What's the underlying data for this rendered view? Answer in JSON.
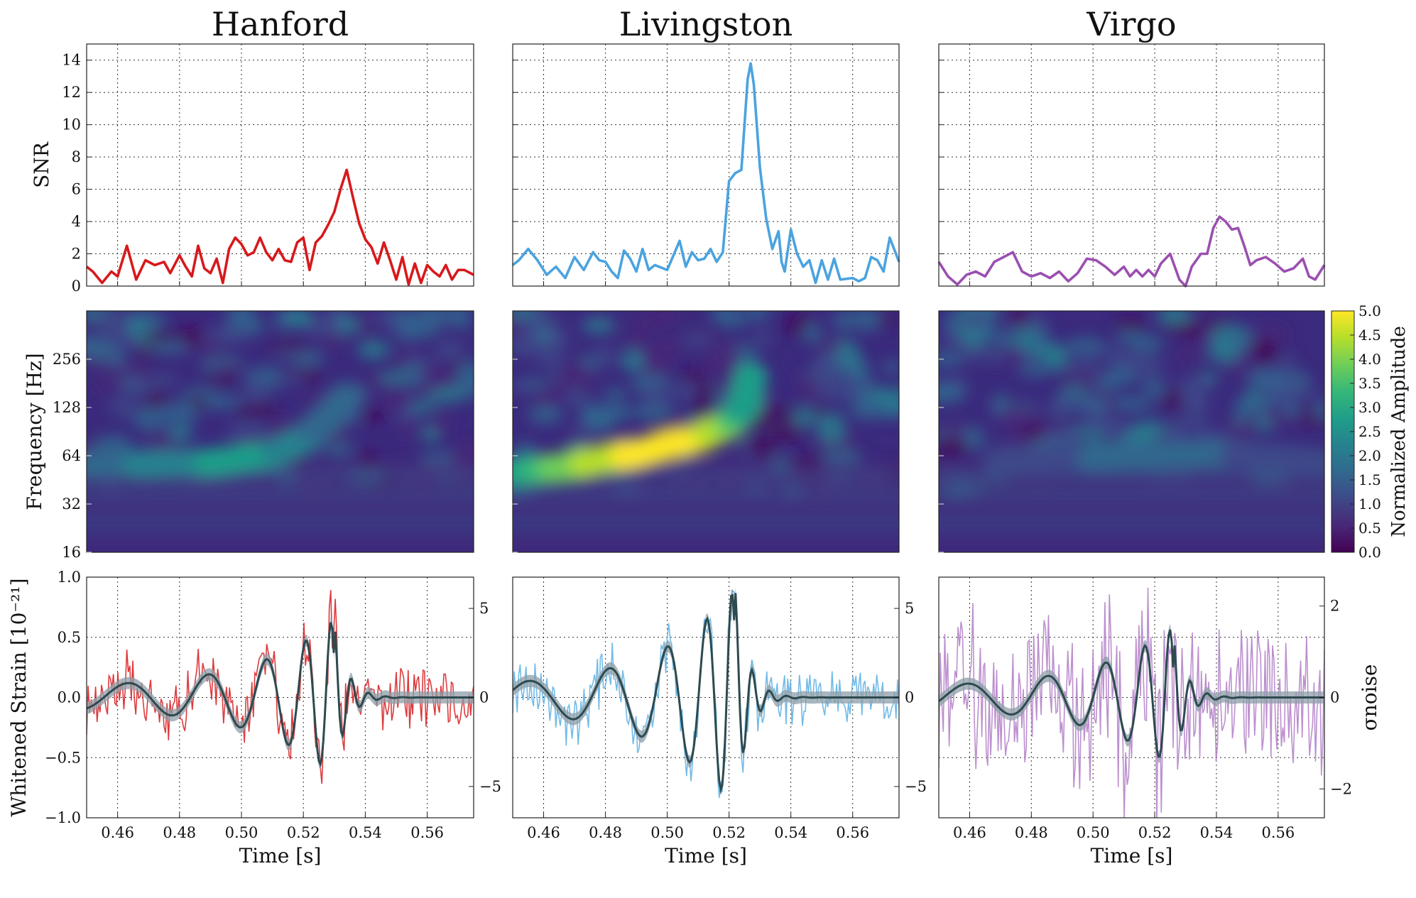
{
  "chart_data": {
    "type": "line",
    "layout": "3x3-grid",
    "columns": [
      "Hanford",
      "Livingston",
      "Virgo"
    ],
    "x_axis": {
      "label": "Time [s]",
      "range": [
        0.45,
        0.575
      ],
      "ticks": [
        0.46,
        0.48,
        0.5,
        0.52,
        0.54,
        0.56
      ],
      "tick_labels": [
        "0.46",
        "0.48",
        "0.50",
        "0.52",
        "0.54",
        "0.56"
      ]
    },
    "snr": {
      "ylabel": "SNR",
      "ylim": [
        0,
        15
      ],
      "ticks": [
        0,
        2,
        4,
        6,
        8,
        10,
        12,
        14
      ],
      "grid": true,
      "series": [
        {
          "name": "Hanford",
          "color": "#d7191c",
          "peak_time": 0.534,
          "peak_value": 7.2,
          "points": [
            [
              0.45,
              1.2
            ],
            [
              0.452,
              0.9
            ],
            [
              0.455,
              0.2
            ],
            [
              0.458,
              0.9
            ],
            [
              0.46,
              0.6
            ],
            [
              0.463,
              2.5
            ],
            [
              0.466,
              0.4
            ],
            [
              0.469,
              1.6
            ],
            [
              0.472,
              1.3
            ],
            [
              0.475,
              1.5
            ],
            [
              0.477,
              0.8
            ],
            [
              0.48,
              1.9
            ],
            [
              0.482,
              1.2
            ],
            [
              0.484,
              0.6
            ],
            [
              0.486,
              2.5
            ],
            [
              0.488,
              1.1
            ],
            [
              0.49,
              0.8
            ],
            [
              0.492,
              1.7
            ],
            [
              0.494,
              0.2
            ],
            [
              0.496,
              2.3
            ],
            [
              0.498,
              3.0
            ],
            [
              0.5,
              2.6
            ],
            [
              0.502,
              1.9
            ],
            [
              0.504,
              2.1
            ],
            [
              0.506,
              3.0
            ],
            [
              0.508,
              2.1
            ],
            [
              0.51,
              1.6
            ],
            [
              0.512,
              2.3
            ],
            [
              0.514,
              1.6
            ],
            [
              0.516,
              1.5
            ],
            [
              0.518,
              2.7
            ],
            [
              0.52,
              3.0
            ],
            [
              0.522,
              1.0
            ],
            [
              0.524,
              2.7
            ],
            [
              0.526,
              3.1
            ],
            [
              0.528,
              3.8
            ],
            [
              0.53,
              4.6
            ],
            [
              0.532,
              6.0
            ],
            [
              0.534,
              7.2
            ],
            [
              0.536,
              5.5
            ],
            [
              0.538,
              3.9
            ],
            [
              0.54,
              2.9
            ],
            [
              0.542,
              2.4
            ],
            [
              0.544,
              1.4
            ],
            [
              0.546,
              2.7
            ],
            [
              0.548,
              1.6
            ],
            [
              0.55,
              0.4
            ],
            [
              0.552,
              1.8
            ],
            [
              0.554,
              0.1
            ],
            [
              0.556,
              1.4
            ],
            [
              0.558,
              0.2
            ],
            [
              0.56,
              1.3
            ],
            [
              0.562,
              0.9
            ],
            [
              0.564,
              0.6
            ],
            [
              0.566,
              1.3
            ],
            [
              0.568,
              0.4
            ],
            [
              0.57,
              1.0
            ],
            [
              0.572,
              1.0
            ],
            [
              0.575,
              0.7
            ]
          ]
        },
        {
          "name": "Livingston",
          "color": "#4aa3df",
          "peak_time": 0.527,
          "peak_value": 13.8,
          "points": [
            [
              0.45,
              1.3
            ],
            [
              0.452,
              1.6
            ],
            [
              0.455,
              2.3
            ],
            [
              0.458,
              1.6
            ],
            [
              0.461,
              0.7
            ],
            [
              0.464,
              1.2
            ],
            [
              0.467,
              0.5
            ],
            [
              0.47,
              1.8
            ],
            [
              0.473,
              1.0
            ],
            [
              0.476,
              2.1
            ],
            [
              0.478,
              1.6
            ],
            [
              0.48,
              1.5
            ],
            [
              0.482,
              0.9
            ],
            [
              0.484,
              0.5
            ],
            [
              0.486,
              2.2
            ],
            [
              0.488,
              1.7
            ],
            [
              0.49,
              0.9
            ],
            [
              0.492,
              2.3
            ],
            [
              0.494,
              1.0
            ],
            [
              0.496,
              1.3
            ],
            [
              0.5,
              1.0
            ],
            [
              0.504,
              2.8
            ],
            [
              0.506,
              1.2
            ],
            [
              0.508,
              2.1
            ],
            [
              0.51,
              1.6
            ],
            [
              0.512,
              1.7
            ],
            [
              0.514,
              2.3
            ],
            [
              0.516,
              1.5
            ],
            [
              0.518,
              2.1
            ],
            [
              0.52,
              6.5
            ],
            [
              0.522,
              7.0
            ],
            [
              0.524,
              7.2
            ],
            [
              0.526,
              12.8
            ],
            [
              0.527,
              13.8
            ],
            [
              0.528,
              12.5
            ],
            [
              0.53,
              7.3
            ],
            [
              0.532,
              4.2
            ],
            [
              0.534,
              2.3
            ],
            [
              0.536,
              3.4
            ],
            [
              0.537,
              1.5
            ],
            [
              0.538,
              0.9
            ],
            [
              0.54,
              3.5
            ],
            [
              0.542,
              2.0
            ],
            [
              0.544,
              1.2
            ],
            [
              0.546,
              1.6
            ],
            [
              0.548,
              0.2
            ],
            [
              0.55,
              1.6
            ],
            [
              0.552,
              0.4
            ],
            [
              0.554,
              1.7
            ],
            [
              0.556,
              0.4
            ],
            [
              0.56,
              0.5
            ],
            [
              0.562,
              0.3
            ],
            [
              0.564,
              0.5
            ],
            [
              0.566,
              1.8
            ],
            [
              0.568,
              1.6
            ],
            [
              0.57,
              0.9
            ],
            [
              0.572,
              3.0
            ],
            [
              0.575,
              1.5
            ]
          ]
        },
        {
          "name": "Virgo",
          "color": "#9b4fb0",
          "peak_time": 0.541,
          "peak_value": 4.3,
          "points": [
            [
              0.45,
              1.5
            ],
            [
              0.453,
              0.6
            ],
            [
              0.456,
              0.1
            ],
            [
              0.459,
              0.7
            ],
            [
              0.462,
              0.9
            ],
            [
              0.465,
              0.6
            ],
            [
              0.468,
              1.5
            ],
            [
              0.471,
              1.8
            ],
            [
              0.474,
              2.1
            ],
            [
              0.477,
              0.9
            ],
            [
              0.48,
              0.6
            ],
            [
              0.483,
              0.8
            ],
            [
              0.486,
              0.5
            ],
            [
              0.489,
              0.9
            ],
            [
              0.492,
              0.3
            ],
            [
              0.495,
              0.8
            ],
            [
              0.498,
              1.7
            ],
            [
              0.501,
              1.6
            ],
            [
              0.504,
              1.2
            ],
            [
              0.507,
              0.7
            ],
            [
              0.51,
              1.2
            ],
            [
              0.512,
              0.6
            ],
            [
              0.514,
              1.0
            ],
            [
              0.516,
              0.6
            ],
            [
              0.518,
              1.0
            ],
            [
              0.52,
              0.6
            ],
            [
              0.522,
              1.4
            ],
            [
              0.525,
              2.0
            ],
            [
              0.528,
              0.4
            ],
            [
              0.53,
              0.0
            ],
            [
              0.532,
              1.2
            ],
            [
              0.535,
              2.0
            ],
            [
              0.537,
              2.0
            ],
            [
              0.539,
              3.6
            ],
            [
              0.541,
              4.3
            ],
            [
              0.543,
              4.0
            ],
            [
              0.545,
              3.5
            ],
            [
              0.547,
              3.6
            ],
            [
              0.549,
              2.5
            ],
            [
              0.551,
              1.3
            ],
            [
              0.553,
              1.6
            ],
            [
              0.556,
              1.8
            ],
            [
              0.559,
              1.4
            ],
            [
              0.562,
              0.9
            ],
            [
              0.565,
              1.1
            ],
            [
              0.568,
              1.7
            ],
            [
              0.57,
              0.6
            ],
            [
              0.572,
              0.4
            ],
            [
              0.575,
              1.3
            ]
          ]
        }
      ]
    },
    "spectrogram": {
      "type": "heatmap",
      "ylabel": "Frequency [Hz]",
      "yscale": "log2",
      "ylim": [
        16,
        512
      ],
      "yticks": [
        16,
        32,
        64,
        128,
        256
      ],
      "colorbar": {
        "label": "Normalized Amplitude",
        "range": [
          0,
          5
        ],
        "ticks": [
          "0.0",
          "0.5",
          "1.0",
          "1.5",
          "2.0",
          "2.5",
          "3.0",
          "3.5",
          "4.0",
          "4.5",
          "5.0"
        ],
        "colormap": "viridis"
      },
      "tracks": [
        {
          "name": "Hanford",
          "amplitude": 2.6,
          "chirp": [
            [
              0.45,
              56
            ],
            [
              0.47,
              57
            ],
            [
              0.49,
              58
            ],
            [
              0.51,
              65
            ],
            [
              0.52,
              80
            ],
            [
              0.53,
              120
            ],
            [
              0.534,
              150
            ]
          ],
          "width": 0.26
        },
        {
          "name": "Livingston",
          "amplitude": 5.0,
          "chirp": [
            [
              0.45,
              50
            ],
            [
              0.47,
              56
            ],
            [
              0.49,
              66
            ],
            [
              0.51,
              82
            ],
            [
              0.52,
              100
            ],
            [
              0.525,
              130
            ],
            [
              0.527,
              200
            ]
          ],
          "width": 0.28
        },
        {
          "name": "Virgo",
          "amplitude": 1.7,
          "chirp": [
            [
              0.47,
              60
            ],
            [
              0.5,
              62
            ],
            [
              0.52,
              64
            ],
            [
              0.54,
              66
            ],
            [
              0.56,
              62
            ],
            [
              0.575,
              58
            ]
          ],
          "width": 0.3
        }
      ]
    },
    "strain": {
      "ylabel": "Whitened Strain  [10⁻²¹]",
      "ylim": [
        -1.0,
        1.0
      ],
      "yticks": [
        "−1.0",
        "−0.5",
        "0.0",
        "0.5",
        "1.0"
      ],
      "right_label": "σnoise",
      "right_ticks": [
        [
          "−5",
          "0",
          "5"
        ],
        [
          "−5",
          "0",
          "5"
        ],
        [
          "−2",
          "0",
          "2"
        ]
      ],
      "model_color": "#2d4a4f",
      "band_color": "#8e9ea8",
      "series": [
        {
          "name": "Hanford",
          "data_color": "#d7191c",
          "merger_time": 0.53,
          "merger_amplitude": 0.62,
          "noise_amplitude": 0.14
        },
        {
          "name": "Livingston",
          "data_color": "#5aafe3",
          "merger_time": 0.522,
          "merger_amplitude": 0.9,
          "noise_amplitude": 0.12
        },
        {
          "name": "Virgo",
          "data_color": "#b07cc6",
          "merger_time": 0.526,
          "merger_amplitude": 0.55,
          "noise_amplitude": 0.35
        }
      ]
    }
  }
}
